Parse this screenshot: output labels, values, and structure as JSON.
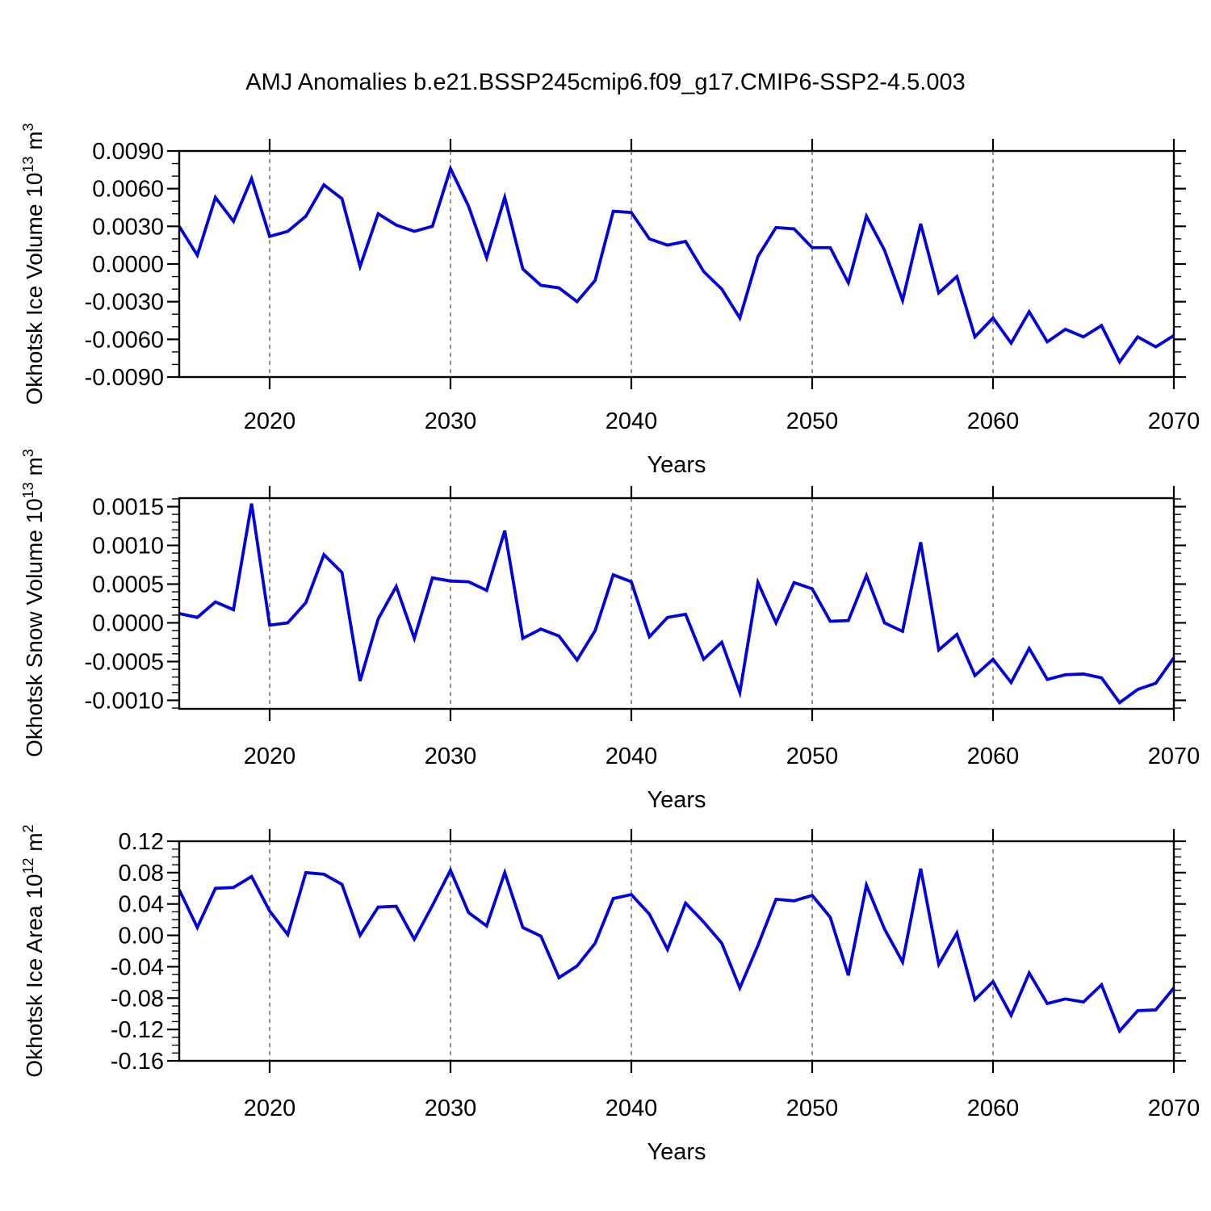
{
  "title": "AMJ Anomalies b.e21.BSSP245cmip6.f09_g17.CMIP6-SSP2-4.5.003",
  "line_color": "#0000E0",
  "grid_color": "#7a7a7a",
  "frame_color": "#000000",
  "years": [
    2015,
    2016,
    2017,
    2018,
    2019,
    2020,
    2021,
    2022,
    2023,
    2024,
    2025,
    2026,
    2027,
    2028,
    2029,
    2030,
    2031,
    2032,
    2033,
    2034,
    2035,
    2036,
    2037,
    2038,
    2039,
    2040,
    2041,
    2042,
    2043,
    2044,
    2045,
    2046,
    2047,
    2048,
    2049,
    2050,
    2051,
    2052,
    2053,
    2054,
    2055,
    2056,
    2057,
    2058,
    2059,
    2060,
    2061,
    2062,
    2063,
    2064,
    2065,
    2066,
    2067,
    2068,
    2069,
    2070
  ],
  "chart_data": [
    {
      "type": "line",
      "name": "okhotsk-ice-volume",
      "ylabel_text": "Okhotsk Ice Volume 10^13 m^3",
      "ylabel_segments": [
        {
          "text": "Okhotsk Ice Volume 10"
        },
        {
          "text": "13",
          "sup": true
        },
        {
          "text": " m"
        },
        {
          "text": "3",
          "sup": true
        }
      ],
      "xlabel": "Years",
      "xlim": [
        2015,
        2070
      ],
      "ylim": [
        -0.009,
        0.009
      ],
      "yticks": [
        0.009,
        0.006,
        0.003,
        0,
        -0.003,
        -0.006,
        -0.009
      ],
      "ytick_labels": [
        "0.0090",
        "0.0060",
        "0.0030",
        "0.0000",
        "-0.0030",
        "-0.0060",
        "-0.0090"
      ],
      "yminor_step": 0.001,
      "xticks": [
        2020,
        2030,
        2040,
        2050,
        2060,
        2070
      ],
      "xtick_labels": [
        "2020",
        "2030",
        "2040",
        "2050",
        "2060",
        "2070"
      ],
      "xminor_step": 2,
      "grid_x": [
        2020,
        2030,
        2040,
        2050,
        2060
      ],
      "values": [
        0.003,
        0.0007,
        0.0053,
        0.0034,
        0.0068,
        0.0022,
        0.0026,
        0.0038,
        0.0063,
        0.0052,
        -0.0002,
        0.004,
        0.0031,
        0.0026,
        0.003,
        0.0076,
        0.0046,
        0.0005,
        0.0053,
        -0.0004,
        -0.0017,
        -0.0019,
        -0.003,
        -0.0013,
        0.0042,
        0.0041,
        0.002,
        0.0015,
        0.0018,
        -0.0006,
        -0.002,
        -0.0043,
        0.0006,
        0.0029,
        0.0028,
        0.0013,
        0.0013,
        -0.0015,
        0.0038,
        0.0011,
        -0.0029,
        0.0032,
        -0.0023,
        -0.001,
        -0.0058,
        -0.0043,
        -0.0063,
        -0.0038,
        -0.0062,
        -0.0052,
        -0.0058,
        -0.0049,
        -0.0078,
        -0.0058,
        -0.0066,
        -0.0057
      ]
    },
    {
      "type": "line",
      "name": "okhotsk-snow-volume",
      "ylabel_text": "Okhotsk Snow Volume 10^13 m^3",
      "ylabel_segments": [
        {
          "text": "Okhotsk Snow Volume 10"
        },
        {
          "text": "13",
          "sup": true
        },
        {
          "text": " m"
        },
        {
          "text": "3",
          "sup": true
        }
      ],
      "xlabel": "Years",
      "xlim": [
        2015,
        2070
      ],
      "ylim": [
        -0.00111,
        0.00161
      ],
      "yticks": [
        0.0015,
        0.001,
        0.0005,
        0,
        -0.0005,
        -0.001
      ],
      "ytick_labels": [
        "0.0015",
        "0.0010",
        "0.0005",
        "0.0000",
        "-0.0005",
        "-0.0010"
      ],
      "yminor_step": 0.0001,
      "xticks": [
        2020,
        2030,
        2040,
        2050,
        2060,
        2070
      ],
      "xtick_labels": [
        "2020",
        "2030",
        "2040",
        "2050",
        "2060",
        "2070"
      ],
      "xminor_step": 2,
      "grid_x": [
        2020,
        2030,
        2040,
        2050,
        2060
      ],
      "values": [
        0.00012,
        7e-05,
        0.00027,
        0.00017,
        0.00154,
        -3e-05,
        0.0,
        0.00026,
        0.00088,
        0.00065,
        -0.00075,
        5e-05,
        0.00047,
        -0.0002,
        0.00058,
        0.00054,
        0.00053,
        0.00042,
        0.00119,
        -0.0002,
        -8e-05,
        -0.00017,
        -0.00048,
        -0.0001,
        0.00062,
        0.00053,
        -0.00018,
        7e-05,
        0.00011,
        -0.00047,
        -0.00025,
        -0.0009,
        0.00052,
        0.0,
        0.00052,
        0.00044,
        2e-05,
        3e-05,
        0.00061,
        0.0,
        -0.00011,
        0.00104,
        -0.00035,
        -0.00015,
        -0.00068,
        -0.00047,
        -0.00077,
        -0.00033,
        -0.00073,
        -0.00067,
        -0.00066,
        -0.00071,
        -0.00103,
        -0.00086,
        -0.00078,
        -0.00045
      ]
    },
    {
      "type": "line",
      "name": "okhotsk-ice-area",
      "ylabel_text": "Okhotsk Ice Area 10^12 m^2",
      "ylabel_segments": [
        {
          "text": "Okhotsk Ice Area 10"
        },
        {
          "text": "12",
          "sup": true
        },
        {
          "text": " m"
        },
        {
          "text": "2",
          "sup": true
        }
      ],
      "xlabel": "Years",
      "xlim": [
        2015,
        2070
      ],
      "ylim": [
        -0.16,
        0.12
      ],
      "yticks": [
        0.12,
        0.08,
        0.04,
        0,
        -0.04,
        -0.08,
        -0.12,
        -0.16
      ],
      "ytick_labels": [
        "0.12",
        "0.08",
        "0.04",
        "0.00",
        "-0.04",
        "-0.08",
        "-0.12",
        "-0.16"
      ],
      "yminor_step": 0.01,
      "xticks": [
        2020,
        2030,
        2040,
        2050,
        2060,
        2070
      ],
      "xtick_labels": [
        "2020",
        "2030",
        "2040",
        "2050",
        "2060",
        "2070"
      ],
      "xminor_step": 2,
      "grid_x": [
        2020,
        2030,
        2040,
        2050,
        2060
      ],
      "values": [
        0.058,
        0.01,
        0.06,
        0.061,
        0.075,
        0.031,
        0.001,
        0.08,
        0.078,
        0.065,
        0.0,
        0.036,
        0.037,
        -0.005,
        0.038,
        0.083,
        0.029,
        0.012,
        0.08,
        0.01,
        -0.001,
        -0.054,
        -0.039,
        -0.01,
        0.047,
        0.052,
        0.027,
        -0.018,
        0.041,
        0.017,
        -0.01,
        -0.067,
        -0.013,
        0.046,
        0.044,
        0.051,
        0.023,
        -0.051,
        0.064,
        0.008,
        -0.034,
        0.085,
        -0.037,
        0.003,
        -0.082,
        -0.059,
        -0.102,
        -0.048,
        -0.087,
        -0.081,
        -0.085,
        -0.063,
        -0.122,
        -0.096,
        -0.095,
        -0.067
      ]
    }
  ]
}
